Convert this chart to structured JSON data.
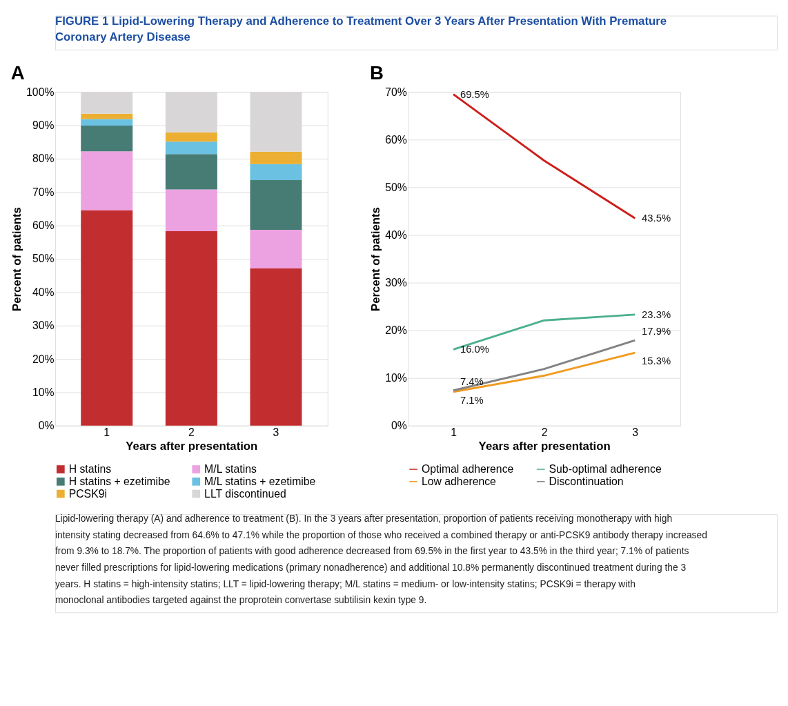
{
  "chart_data": [
    {
      "type": "bar",
      "title": "A",
      "stacked": true,
      "xlabel": "Years after presentation",
      "ylabel": "Percent of patients",
      "categories": [
        "1",
        "2",
        "3"
      ],
      "series": [
        {
          "name": "H statins",
          "color": "#c22d2f",
          "values": [
            64.6,
            58.3,
            47.1
          ]
        },
        {
          "name": "M/L statins",
          "color": "#eca1e1",
          "values": [
            17.6,
            12.5,
            11.6
          ]
        },
        {
          "name": "H statins + ezetimibe",
          "color": "#477c75",
          "values": [
            7.7,
            10.6,
            14.9
          ]
        },
        {
          "name": "M/L statins + ezetimibe",
          "color": "#6bc1e2",
          "values": [
            2.0,
            3.7,
            4.8
          ]
        },
        {
          "name": "PCSK9i",
          "color": "#ecaf31",
          "values": [
            1.6,
            2.8,
            3.7
          ]
        },
        {
          "name": "LLT discontinued",
          "color": "#d9d6d7",
          "values": [
            6.5,
            12.1,
            17.9
          ]
        }
      ],
      "ylim": [
        0,
        100
      ],
      "yticks": [
        {
          "value": 0,
          "label": "0%"
        },
        {
          "value": 10,
          "label": "10%"
        },
        {
          "value": 20,
          "label": "20%"
        },
        {
          "value": 30,
          "label": "30%"
        },
        {
          "value": 40,
          "label": "40%"
        },
        {
          "value": 50,
          "label": "50%"
        },
        {
          "value": 60,
          "label": "60%"
        },
        {
          "value": 70,
          "label": "70%"
        },
        {
          "value": 80,
          "label": "80%"
        },
        {
          "value": 90,
          "label": "90%"
        },
        {
          "value": 100,
          "label": "100%"
        }
      ],
      "grid": "y",
      "legend": "bottom",
      "annotations": [
        "FIGURE 1  Lipid-Lowering Therapy and Adherence to Treatment Over 3 Years After Presentation With Premature Coronary Artery Disease",
        "Lipid-lowering therapy (A) and adherence to treatment (B). In the 3 years after presentation, proportion of patients receiving monotherapy with high intensity stating decreased from 64.6% to 47.1% while the proportion of those who received a combined therapy or anti-PCSK9 antibody therapy increased from 9.3% to 18.7%. The proportion of patients with good adherence decreased from 69.5% in the first year to 43.5% in the third year; 7.1% of patients never filled prescriptions for lipid-lowering medications (primary nonadherence) and additional 10.8% permanently discontinued treatment during the 3 years. H statins = high-intensity statins; LLT = lipid-lowering therapy; M/L statins = medium- or low-intensity statins; PCSK9i = therapy with monoclonal antibodies targeted against the proprotein convertase subtilisin kexin type 9."
      ]
    },
    {
      "type": "line",
      "title": "B",
      "xlabel": "Years after presentation",
      "ylabel": "Percent of patients",
      "categories": [
        "1",
        "2",
        "3"
      ],
      "series": [
        {
          "name": "Optimal adherence",
          "color": "#cc1f1a",
          "values": [
            69.5,
            55.6,
            43.5
          ],
          "value_labels": [
            "69.5%",
            null,
            "43.5%"
          ]
        },
        {
          "name": "Sub-optimal adherence",
          "color": "#4cb08e",
          "values": [
            16.0,
            22.1,
            23.3
          ],
          "value_labels": [
            "16.0%",
            null,
            "23.3%"
          ]
        },
        {
          "name": "Low adherence",
          "color": "#f19a1f",
          "values": [
            7.1,
            10.5,
            15.3
          ],
          "value_labels": [
            "7.1%",
            null,
            "15.3%"
          ]
        },
        {
          "name": "Discontinuation",
          "color": "#838383",
          "values": [
            7.4,
            11.9,
            17.9
          ],
          "value_labels": [
            "7.4%",
            null,
            "17.9%"
          ]
        }
      ],
      "ylim": [
        0,
        70
      ],
      "yticks": [
        {
          "value": 0,
          "label": "0%"
        },
        {
          "value": 10,
          "label": "10%"
        },
        {
          "value": 20,
          "label": "20%"
        },
        {
          "value": 30,
          "label": "30%"
        },
        {
          "value": 40,
          "label": "40%"
        },
        {
          "value": 50,
          "label": "50%"
        },
        {
          "value": 60,
          "label": "60%"
        },
        {
          "value": 70,
          "label": "70%"
        }
      ],
      "grid": "y",
      "legend": "bottom",
      "marker": "none",
      "line_style": "solid"
    }
  ]
}
